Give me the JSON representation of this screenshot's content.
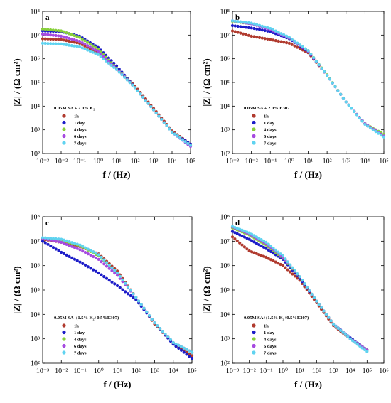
{
  "colors": {
    "1h": "#b03a2e",
    "1 day": "#1c1cc8",
    "4 days": "#88d03a",
    "6 days": "#a64ae0",
    "7 days": "#5fd3f0"
  },
  "chart_data": [
    {
      "type": "scatter",
      "panel": "a",
      "xlabel": "f / (Hz)",
      "ylabel": "|Z| / (Ω cm²)",
      "xscale": "log",
      "yscale": "log",
      "xlim": [
        0.001,
        100000
      ],
      "ylim": [
        100,
        100000000
      ],
      "xticks": [
        "10⁻³",
        "10⁻²",
        "10⁻¹",
        "10⁰",
        "10¹",
        "10²",
        "10³",
        "10⁴",
        "10⁵"
      ],
      "yticks": [
        "10²",
        "10³",
        "10⁴",
        "10⁵",
        "10⁶",
        "10⁷",
        "10⁸"
      ],
      "legend_title": "0.05M SA + 2.0% K₂",
      "legend_position": "lower-left",
      "series": [
        {
          "name": "1h",
          "x": [
            0.001,
            0.01,
            0.1,
            1,
            10,
            100,
            1000,
            10000,
            100000
          ],
          "y": [
            7000000,
            6500000,
            4500000,
            1700000,
            400000,
            70000,
            8000,
            900,
            250
          ]
        },
        {
          "name": "1 day",
          "x": [
            0.001,
            0.01,
            0.1,
            1,
            10,
            100,
            1000,
            10000,
            100000
          ],
          "y": [
            15000000,
            14000000,
            9000000,
            3000000,
            500000,
            60000,
            7000,
            800,
            250
          ]
        },
        {
          "name": "4 days",
          "x": [
            0.001,
            0.01,
            0.1,
            1,
            10,
            100,
            1000,
            10000,
            100000
          ],
          "y": [
            18000000,
            15000000,
            8000000,
            2500000,
            400000,
            60000,
            7000,
            800,
            220
          ]
        },
        {
          "name": "6 days",
          "x": [
            0.001,
            0.01,
            0.1,
            1,
            10,
            100,
            1000,
            10000,
            100000
          ],
          "y": [
            11000000,
            9000000,
            5500000,
            2000000,
            380000,
            60000,
            7000,
            800,
            200
          ]
        },
        {
          "name": "7 days",
          "x": [
            0.001,
            0.01,
            0.1,
            1,
            10,
            100,
            1000,
            10000,
            100000
          ],
          "y": [
            4500000,
            4200000,
            3200000,
            1500000,
            350000,
            60000,
            7000,
            800,
            220
          ]
        }
      ]
    },
    {
      "type": "scatter",
      "panel": "b",
      "xlabel": "f / (Hz)",
      "ylabel": "|Z| / (Ω cm²)",
      "xscale": "log",
      "yscale": "log",
      "xlim": [
        0.001,
        100000
      ],
      "ylim": [
        100,
        100000000
      ],
      "xticks": [
        "10⁻³",
        "10⁻²",
        "10⁻¹",
        "10⁰",
        "10¹",
        "10²",
        "10³",
        "10⁴",
        "10⁵"
      ],
      "yticks": [
        "10²",
        "10³",
        "10⁴",
        "10⁵",
        "10⁶",
        "10⁷",
        "10⁸"
      ],
      "legend_title": "0.05M SA + 2.0% E307",
      "legend_position": "lower-left",
      "series": [
        {
          "name": "1h",
          "x": [
            0.001,
            0.01,
            0.1,
            1,
            10,
            100,
            1000,
            10000,
            100000
          ],
          "y": [
            15000000,
            9000000,
            6500000,
            4500000,
            1800000,
            200000,
            15000,
            1800,
            550
          ]
        },
        {
          "name": "1 day",
          "x": [
            0.001,
            0.01,
            0.1,
            1,
            10,
            100,
            1000,
            10000,
            100000
          ],
          "y": [
            25000000,
            20000000,
            14000000,
            7000000,
            2000000,
            200000,
            15000,
            1800,
            550
          ]
        },
        {
          "name": "4 days",
          "x": [
            0.001,
            0.01,
            0.1,
            1,
            10,
            100,
            1000,
            10000,
            100000
          ],
          "y": [
            38000000,
            30000000,
            18000000,
            7500000,
            2200000,
            210000,
            15000,
            1800,
            650
          ]
        },
        {
          "name": "6 days",
          "x": [
            0.001,
            0.01,
            0.1,
            1,
            10,
            100,
            1000,
            10000,
            100000
          ],
          "y": [
            40000000,
            30000000,
            17000000,
            7500000,
            2100000,
            200000,
            15000,
            1800,
            550
          ]
        },
        {
          "name": "7 days",
          "x": [
            0.001,
            0.01,
            0.1,
            1,
            10,
            100,
            1000,
            10000,
            100000
          ],
          "y": [
            40000000,
            32000000,
            19000000,
            8000000,
            2200000,
            200000,
            15000,
            1700,
            500
          ]
        }
      ]
    },
    {
      "type": "scatter",
      "panel": "c",
      "xlabel": "f / (Hz)",
      "ylabel": "|Z| / (Ω cm²)",
      "xscale": "log",
      "yscale": "log",
      "xlim": [
        0.001,
        100000
      ],
      "ylim": [
        100,
        100000000
      ],
      "xticks": [
        "10⁻³",
        "10⁻²",
        "10⁻¹",
        "10⁰",
        "10¹",
        "10²",
        "10³",
        "10⁴",
        "10⁵"
      ],
      "yticks": [
        "10²",
        "10³",
        "10⁴",
        "10⁵",
        "10⁶",
        "10⁷",
        "10⁸"
      ],
      "legend_title": "0.05M SA+(1.5% K₂+0.5%E307)",
      "legend_position": "lower-left",
      "series": [
        {
          "name": "1h",
          "x": [
            0.001,
            0.01,
            0.1,
            1,
            10,
            100,
            1000,
            10000,
            100000
          ],
          "y": [
            12000000,
            9000000,
            6000000,
            3000000,
            600000,
            50000,
            4000,
            650,
            200
          ]
        },
        {
          "name": "1 day",
          "x": [
            0.001,
            0.01,
            0.1,
            1,
            10,
            100,
            1000,
            10000,
            100000
          ],
          "y": [
            10000000,
            3500000,
            1400000,
            500000,
            150000,
            40000,
            4500,
            600,
            160
          ]
        },
        {
          "name": "4 days",
          "x": [
            0.001,
            0.01,
            0.1,
            1,
            10,
            100,
            1000,
            10000,
            100000
          ],
          "y": [
            13000000,
            11000000,
            6500000,
            2500000,
            500000,
            50000,
            4500,
            700,
            280
          ]
        },
        {
          "name": "6 days",
          "x": [
            0.001,
            0.01,
            0.1,
            1,
            10,
            100,
            1000,
            10000,
            100000
          ],
          "y": [
            13000000,
            9000000,
            4500000,
            1800000,
            400000,
            50000,
            4500,
            700,
            280
          ]
        },
        {
          "name": "7 days",
          "x": [
            0.001,
            0.01,
            0.1,
            1,
            10,
            100,
            1000,
            10000,
            100000
          ],
          "y": [
            14000000,
            12000000,
            7000000,
            2800000,
            500000,
            50000,
            4500,
            700,
            280
          ]
        }
      ]
    },
    {
      "type": "scatter",
      "panel": "d",
      "xlabel": "f / (Hz)",
      "ylabel": "|Z| / (Ω cm²)",
      "xscale": "log",
      "yscale": "log",
      "xlim": [
        0.001,
        1000000
      ],
      "ylim": [
        100,
        100000000
      ],
      "xticks": [
        "10⁻³",
        "10⁻²",
        "10⁻¹",
        "10⁰",
        "10¹",
        "10²",
        "10³",
        "10⁴",
        "10⁵",
        "10⁶"
      ],
      "yticks": [
        "10²",
        "10³",
        "10⁴",
        "10⁵",
        "10⁶",
        "10⁷",
        "10⁸"
      ],
      "legend_title": "0.05M SA+(1.5% K₂+0.5%E307)",
      "legend_position": "lower-left",
      "series": [
        {
          "name": "1h",
          "x": [
            0.001,
            0.01,
            0.1,
            1,
            10,
            100,
            1000,
            10000,
            100000
          ],
          "y": [
            15000000,
            4000000,
            2200000,
            1000000,
            250000,
            30000,
            3500,
            1000,
            350
          ]
        },
        {
          "name": "1 day",
          "x": [
            0.001,
            0.01,
            0.1,
            1,
            10,
            100,
            1000,
            10000,
            100000
          ],
          "y": [
            25000000,
            12000000,
            5000000,
            1800000,
            300000,
            35000,
            4000,
            1100,
            350
          ]
        },
        {
          "name": "4 days",
          "x": [
            0.001,
            0.01,
            0.1,
            1,
            10,
            100,
            1000,
            10000,
            100000
          ],
          "y": [
            35000000,
            18000000,
            7000000,
            2000000,
            350000,
            35000,
            4000,
            1000,
            350
          ]
        },
        {
          "name": "6 days",
          "x": [
            0.001,
            0.01,
            0.1,
            1,
            10,
            100,
            1000,
            10000,
            100000
          ],
          "y": [
            38000000,
            20000000,
            8000000,
            2200000,
            350000,
            35000,
            4000,
            1000,
            350
          ]
        },
        {
          "name": "7 days",
          "x": [
            0.001,
            0.01,
            0.1,
            1,
            10,
            100,
            1000,
            10000,
            100000
          ],
          "y": [
            40000000,
            22000000,
            9000000,
            2500000,
            350000,
            35000,
            4000,
            1000,
            300
          ]
        }
      ]
    }
  ]
}
